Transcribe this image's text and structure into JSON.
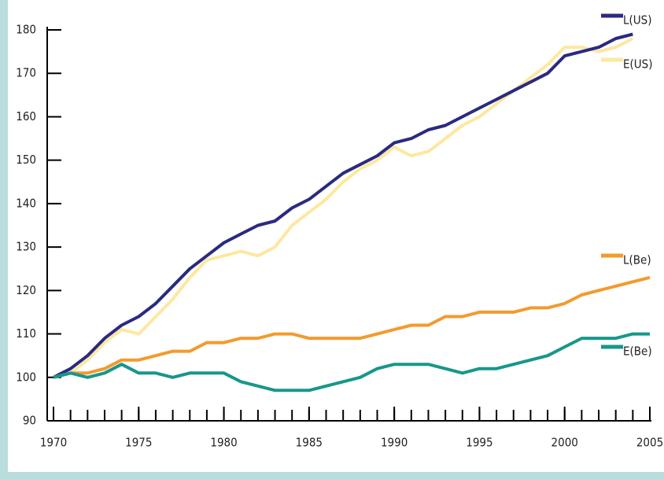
{
  "chart_data": {
    "type": "line",
    "x": [
      1970,
      1971,
      1972,
      1973,
      1974,
      1975,
      1976,
      1977,
      1978,
      1979,
      1980,
      1981,
      1982,
      1983,
      1984,
      1985,
      1986,
      1987,
      1988,
      1989,
      1990,
      1991,
      1992,
      1993,
      1994,
      1995,
      1996,
      1997,
      1998,
      1999,
      2000,
      2001,
      2002,
      2003,
      2004,
      2005
    ],
    "xlim": [
      1970,
      2005
    ],
    "xticks": [
      1970,
      1975,
      1980,
      1985,
      1990,
      1995,
      2000,
      2005
    ],
    "ylim": [
      90,
      180
    ],
    "yticks": [
      90,
      100,
      110,
      120,
      130,
      140,
      150,
      160,
      170,
      180
    ],
    "series": [
      {
        "name": "E(US)",
        "color": "#fde8a0",
        "values": [
          100,
          101,
          104,
          108,
          111,
          110,
          114,
          118,
          123,
          127,
          128,
          129,
          128,
          130,
          135,
          138,
          141,
          145,
          148,
          150,
          153,
          151,
          152,
          155,
          158,
          160,
          163,
          166,
          169,
          172,
          176,
          176,
          175,
          176,
          178,
          null
        ]
      },
      {
        "name": "L(US)",
        "color": "#2b2a80",
        "values": [
          100,
          102,
          105,
          109,
          112,
          114,
          117,
          121,
          125,
          128,
          131,
          133,
          135,
          136,
          139,
          141,
          144,
          147,
          149,
          151,
          154,
          155,
          157,
          158,
          160,
          162,
          164,
          166,
          168,
          170,
          174,
          175,
          176,
          178,
          179,
          null
        ]
      },
      {
        "name": "L(Be)",
        "color": "#f39a2e",
        "values": [
          100,
          101,
          101,
          102,
          104,
          104,
          105,
          106,
          106,
          108,
          108,
          109,
          109,
          110,
          110,
          109,
          109,
          109,
          109,
          110,
          111,
          112,
          112,
          114,
          114,
          115,
          115,
          115,
          116,
          116,
          117,
          119,
          120,
          121,
          122,
          123
        ]
      },
      {
        "name": "E(Be)",
        "color": "#17978a",
        "values": [
          100,
          101,
          100,
          101,
          103,
          101,
          101,
          100,
          101,
          101,
          101,
          99,
          98,
          97,
          97,
          97,
          98,
          99,
          100,
          102,
          103,
          103,
          103,
          102,
          101,
          102,
          102,
          103,
          104,
          105,
          107,
          109,
          109,
          109,
          110,
          110
        ]
      }
    ]
  }
}
